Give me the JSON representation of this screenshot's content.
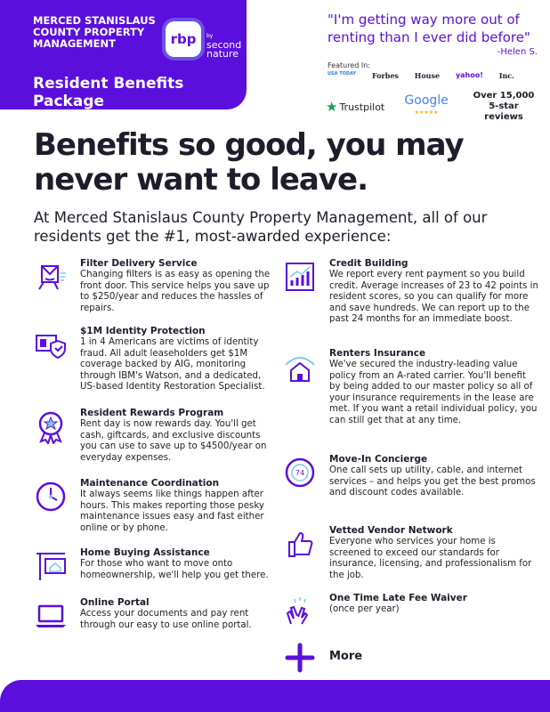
{
  "header": {
    "company": "MERCED STANISLAUS COUNTY PROPERTY MANAGEMENT",
    "logo_text": "rbp",
    "partner_by": "by",
    "partner": "second nature",
    "package": "Resident Benefits Package"
  },
  "quote": {
    "text": "\"I'm getting way more out of renting than I ever did before\"",
    "author": "-Helen S."
  },
  "featured": {
    "label": "Featured In:",
    "pubs": [
      "USA TODAY",
      "Forbes",
      "House",
      "yahoo!",
      "Inc."
    ]
  },
  "reviews": {
    "trustpilot": "Trustpilot",
    "google": "Google",
    "stars": "★★★★★",
    "count": "Over 15,000 5-star reviews"
  },
  "headline": "Benefits so good, you may never want to leave.",
  "subheading": "At Merced Stanislaus County Property Management, all of our residents get the #1, most-awarded experience:",
  "accent": "#5a0fdc",
  "left": [
    {
      "icon": "filter-box-icon",
      "title": "Filter Delivery Service",
      "desc": "Changing filters is as easy as opening the front door. This service helps you save up to $250/year and reduces the hassles of repairs."
    },
    {
      "icon": "id-shield-icon",
      "title": "$1M Identity Protection",
      "desc": "1 in 4 Americans are victims of identity fraud. All adult leaseholders get $1M coverage backed by AIG, monitoring through IBM's Watson, and a dedicated, US-based Identity Restoration Specialist."
    },
    {
      "icon": "award-ribbon-icon",
      "title": "Resident Rewards Program",
      "desc": "Rent day is now rewards day. You'll get cash, giftcards, and exclusive discounts you can use to save up to $4500/year on everyday expenses."
    },
    {
      "icon": "clock-icon",
      "title": "Maintenance Coordination",
      "desc": "It always seems like things happen after hours. This makes reporting those pesky maintenance issues easy and fast either online or by phone."
    },
    {
      "icon": "house-sign-icon",
      "title": "Home Buying Assistance",
      "desc": "For those who want to move onto homeownership, we'll help you get there."
    },
    {
      "icon": "laptop-icon",
      "title": "Online Portal",
      "desc": "Access your documents and pay rent through our easy to use online portal."
    }
  ],
  "right": [
    {
      "icon": "chart-up-icon",
      "title": "Credit Building",
      "desc": "We report every rent payment so you build credit. Average increases of 23 to 42 points in resident scores, so you can qualify for more and save hundreds. We can report up to the past 24 months for an immediate boost."
    },
    {
      "icon": "house-umbrella-icon",
      "title": "Renters Insurance",
      "desc": "We've secured the industry-leading value policy from an A-rated carrier. You'll benefit by being added to our master policy so all of your insurance requirements in the lease are met. If you want a retail individual policy, you can still get that at any time."
    },
    {
      "icon": "thermostat-icon",
      "title": "Move-In Concierge",
      "desc": "One call sets up utility, cable, and internet services – and helps you get the best promos and discount codes available."
    },
    {
      "icon": "thumbs-up-icon",
      "title": "Vetted Vendor Network",
      "desc": "Everyone who services your home is screened to exceed our standards for insurance, licensing, and professionalism for the job."
    },
    {
      "icon": "clap-hands-icon",
      "title": "One Time Late Fee Waiver",
      "desc": "(once per year)"
    }
  ],
  "more": {
    "icon": "plus-icon",
    "label": "More"
  }
}
